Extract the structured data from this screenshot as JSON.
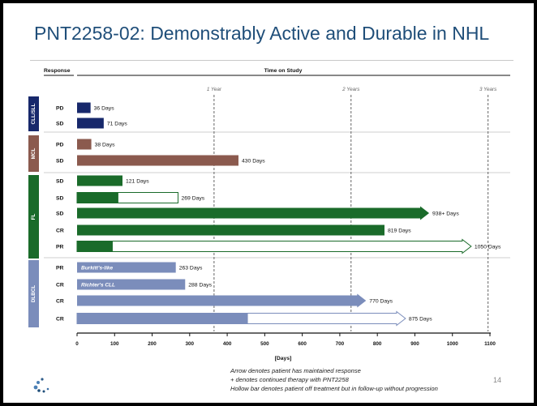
{
  "slide": {
    "title": "PNT2258-02: Demonstrably Active and Durable in NHL",
    "page_number": "14",
    "footnotes": [
      "Arrow denotes patient has maintained response",
      "+ denotes continued therapy with PNT2258",
      "Hollow bar denotes patient off treatment but in follow-up without progression"
    ]
  },
  "colors": {
    "cll_sll": "#17286b",
    "mcl": "#8b5a4e",
    "fl": "#1a6b2a",
    "dlbcl": "#7b8dbb"
  },
  "chart_data": {
    "type": "bar",
    "orientation": "horizontal",
    "header_response": "Response",
    "header_time": "Time on Study",
    "xlabel": "[Days]",
    "xlim": [
      0,
      1100
    ],
    "xticks": [
      0,
      100,
      200,
      300,
      400,
      500,
      600,
      700,
      800,
      900,
      1000,
      1100
    ],
    "reference_lines": [
      {
        "x": 365,
        "label": "1 Year"
      },
      {
        "x": 730,
        "label": "2 Years"
      },
      {
        "x": 1095,
        "label": "3 Years"
      }
    ],
    "groups": [
      {
        "name": "CLL/SLL",
        "color": "#17286b",
        "rows": [
          {
            "response": "PD",
            "solid": 36,
            "total": 36,
            "label": "36 Days",
            "arrow": false
          },
          {
            "response": "SD",
            "solid": 71,
            "total": 71,
            "label": "71 Days",
            "arrow": false
          }
        ]
      },
      {
        "name": "MCL",
        "color": "#8b5a4e",
        "rows": [
          {
            "response": "PD",
            "solid": 38,
            "total": 38,
            "label": "38 Days",
            "arrow": false
          },
          {
            "response": "SD",
            "solid": 430,
            "total": 430,
            "label": "430 Days",
            "arrow": false
          }
        ]
      },
      {
        "name": "FL",
        "color": "#1a6b2a",
        "rows": [
          {
            "response": "SD",
            "solid": 121,
            "total": 121,
            "label": "121 Days",
            "arrow": false
          },
          {
            "response": "SD",
            "solid": 110,
            "total": 269,
            "label": "269 Days",
            "arrow": false
          },
          {
            "response": "SD",
            "solid": 938,
            "total": 938,
            "label": "938+ Days",
            "arrow": true
          },
          {
            "response": "CR",
            "solid": 819,
            "total": 819,
            "label": "819 Days",
            "arrow": false
          },
          {
            "response": "PR",
            "solid": 95,
            "total": 1050,
            "label": "1050 Days",
            "arrow": true
          }
        ]
      },
      {
        "name": "DLBCL",
        "color": "#7b8dbb",
        "rows": [
          {
            "response": "PR",
            "solid": 263,
            "total": 263,
            "label": "263 Days",
            "arrow": false,
            "inner_label": "Burkitt's-like"
          },
          {
            "response": "CR",
            "solid": 288,
            "total": 288,
            "label": "288 Days",
            "arrow": false,
            "inner_label": "Richter's CLL"
          },
          {
            "response": "CR",
            "solid": 770,
            "total": 770,
            "label": "770 Days",
            "arrow": true
          },
          {
            "response": "CR",
            "solid": 455,
            "total": 875,
            "label": "875 Days",
            "arrow": true
          }
        ]
      }
    ]
  }
}
